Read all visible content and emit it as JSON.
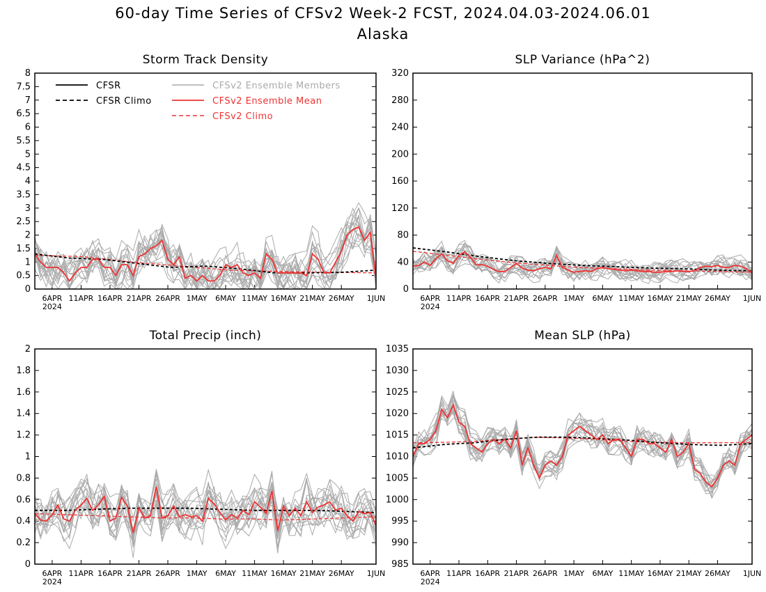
{
  "page": {
    "title": "60-day Time Series of CFSv2 Week-2 FCST, 2024.04.03-2024.06.01",
    "subtitle": "Alaska"
  },
  "colors": {
    "cfsr": "#000000",
    "cfsr_climo": "#000000",
    "members": "#aaaaaa",
    "ensemble_mean": "#ee3333",
    "cfsv2_climo": "#ee3333"
  },
  "legend": {
    "cfsr": "CFSR",
    "cfsr_climo": "CFSR Climo",
    "members": "CFSv2 Ensemble Members",
    "ensemble_mean": "CFSv2 Ensemble Mean",
    "cfsv2_climo": "CFSv2 Climo"
  },
  "x_axis": {
    "start_date": "2024-04-03",
    "end_date": "2024-06-01",
    "tick_labels": [
      "6APR",
      "11APR",
      "16APR",
      "21APR",
      "26APR",
      "1MAY",
      "6MAY",
      "11MAY",
      "16MAY",
      "21MAY",
      "26MAY",
      "1JUN"
    ],
    "tick_dates": [
      "2024-04-06",
      "2024-04-11",
      "2024-04-16",
      "2024-04-21",
      "2024-04-26",
      "2024-05-01",
      "2024-05-06",
      "2024-05-11",
      "2024-05-16",
      "2024-05-21",
      "2024-05-26",
      "2024-06-01"
    ],
    "year_label": "2024"
  },
  "chart_data": [
    {
      "type": "line",
      "title": "Storm Track Density",
      "ylim": [
        0,
        8
      ],
      "yticks": [
        0,
        0.5,
        1,
        1.5,
        2,
        2.5,
        3,
        3.5,
        4,
        4.5,
        5,
        5.5,
        6,
        6.5,
        7,
        7.5,
        8
      ],
      "legend_position": "top",
      "member_count": 16,
      "series": [
        {
          "name": "CFSv2 Ensemble Mean",
          "role": "ensemble_mean",
          "values": [
            1.3,
            1.0,
            0.8,
            0.8,
            0.8,
            0.6,
            0.3,
            0.6,
            0.8,
            0.8,
            1.1,
            1.1,
            0.8,
            0.8,
            0.5,
            0.9,
            0.9,
            0.5,
            1.2,
            1.3,
            1.5,
            1.6,
            1.8,
            1.1,
            0.9,
            1.2,
            0.4,
            0.5,
            0.3,
            0.5,
            0.3,
            0.3,
            0.5,
            0.9,
            0.8,
            0.9,
            0.6,
            0.5,
            0.6,
            0.4,
            1.3,
            1.1,
            0.6,
            0.6,
            0.6,
            0.6,
            0.6,
            0.5,
            1.3,
            1.1,
            0.6,
            0.6,
            1.0,
            1.4,
            2.0,
            2.2,
            2.3,
            1.8,
            2.1,
            0.4
          ]
        },
        {
          "name": "CFSv2 Climo",
          "role": "cfsv2_climo",
          "values": [
            1.25,
            1.2,
            1.0,
            0.85,
            0.7,
            0.65,
            0.62,
            0.6
          ]
        },
        {
          "name": "CFSR Climo",
          "role": "cfsr_climo",
          "values": [
            1.3,
            1.15,
            1.1,
            0.95,
            0.8,
            0.85,
            0.75,
            0.6,
            0.6,
            0.62,
            0.7
          ]
        }
      ]
    },
    {
      "type": "line",
      "title": "SLP Variance (hPa^2)",
      "ylim": [
        0,
        320
      ],
      "yticks": [
        0,
        40,
        80,
        120,
        160,
        200,
        240,
        280,
        320
      ],
      "member_count": 16,
      "series": [
        {
          "name": "CFSv2 Ensemble Mean",
          "role": "ensemble_mean",
          "values": [
            34,
            35,
            40,
            35,
            45,
            52,
            42,
            38,
            50,
            55,
            47,
            36,
            36,
            34,
            29,
            26,
            26,
            32,
            38,
            31,
            28,
            27,
            30,
            32,
            30,
            50,
            32,
            28,
            25,
            26,
            27,
            26,
            30,
            32,
            30,
            29,
            28,
            27,
            28,
            27,
            26,
            26,
            25,
            25,
            26,
            26,
            27,
            26,
            26,
            27,
            32,
            34,
            33,
            35,
            32,
            32,
            35,
            34,
            30,
            24
          ]
        },
        {
          "name": "CFSv2 Climo",
          "role": "cfsv2_climo",
          "values": [
            56,
            50,
            44,
            39,
            35,
            32,
            30,
            28,
            27,
            26,
            25
          ]
        },
        {
          "name": "CFSR Climo",
          "role": "cfsr_climo",
          "values": [
            61,
            55,
            48,
            42,
            38,
            35,
            33,
            31,
            30,
            28,
            27
          ]
        }
      ]
    },
    {
      "type": "line",
      "title": "Total Precip (inch)",
      "ylim": [
        0,
        2
      ],
      "yticks": [
        0,
        0.2,
        0.4,
        0.6,
        0.8,
        1,
        1.2,
        1.4,
        1.6,
        1.8,
        2
      ],
      "member_count": 16,
      "series": [
        {
          "name": "CFSv2 Ensemble Mean",
          "role": "ensemble_mean",
          "values": [
            0.47,
            0.41,
            0.4,
            0.46,
            0.55,
            0.42,
            0.4,
            0.5,
            0.55,
            0.61,
            0.5,
            0.55,
            0.63,
            0.4,
            0.43,
            0.62,
            0.54,
            0.29,
            0.52,
            0.43,
            0.45,
            0.72,
            0.43,
            0.45,
            0.54,
            0.44,
            0.46,
            0.44,
            0.45,
            0.4,
            0.61,
            0.56,
            0.48,
            0.41,
            0.46,
            0.43,
            0.5,
            0.46,
            0.58,
            0.53,
            0.47,
            0.68,
            0.31,
            0.54,
            0.45,
            0.52,
            0.45,
            0.58,
            0.48,
            0.53,
            0.55,
            0.58,
            0.5,
            0.52,
            0.45,
            0.4,
            0.49,
            0.47,
            0.48,
            0.36
          ]
        },
        {
          "name": "CFSv2 Climo",
          "role": "cfsv2_climo",
          "values": [
            0.47,
            0.46,
            0.45,
            0.44,
            0.43,
            0.43,
            0.42,
            0.42,
            0.41,
            0.42,
            0.43,
            0.44
          ]
        },
        {
          "name": "CFSR Climo",
          "role": "cfsr_climo",
          "values": [
            0.5,
            0.5,
            0.51,
            0.52,
            0.52,
            0.52,
            0.51,
            0.5,
            0.5,
            0.5,
            0.49,
            0.48
          ]
        }
      ]
    },
    {
      "type": "line",
      "title": "Mean SLP (hPa)",
      "ylim": [
        985,
        1035
      ],
      "yticks": [
        985,
        990,
        995,
        1000,
        1005,
        1010,
        1015,
        1020,
        1025,
        1030,
        1035
      ],
      "member_count": 16,
      "series": [
        {
          "name": "CFSv2 Ensemble Mean",
          "role": "ensemble_mean",
          "values": [
            1010,
            1013,
            1013,
            1014,
            1016,
            1021,
            1019,
            1022,
            1018,
            1017,
            1013,
            1012,
            1011,
            1013,
            1014,
            1013,
            1014,
            1012,
            1016,
            1008,
            1012,
            1008,
            1005,
            1008,
            1009,
            1008,
            1010,
            1015,
            1016,
            1017,
            1016,
            1015,
            1014,
            1015,
            1013,
            1014,
            1014,
            1012,
            1010,
            1014,
            1014,
            1013,
            1013,
            1012,
            1011,
            1014,
            1010,
            1011,
            1013,
            1007,
            1006,
            1004,
            1003,
            1005,
            1008,
            1009,
            1008,
            1013,
            1014,
            1015
          ]
        },
        {
          "name": "CFSv2 Climo",
          "role": "cfsv2_climo",
          "values": [
            1013.2,
            1013.3,
            1013.5,
            1014.0,
            1014.5,
            1014.3,
            1014.0,
            1013.5,
            1013.3,
            1013.2,
            1013.2,
            1013.3
          ]
        },
        {
          "name": "CFSR Climo",
          "role": "cfsr_climo",
          "values": [
            1012.0,
            1012.8,
            1013.2,
            1014.0,
            1014.5,
            1014.5,
            1014.2,
            1013.8,
            1013.2,
            1012.8,
            1012.6,
            1013.0
          ]
        }
      ]
    }
  ]
}
